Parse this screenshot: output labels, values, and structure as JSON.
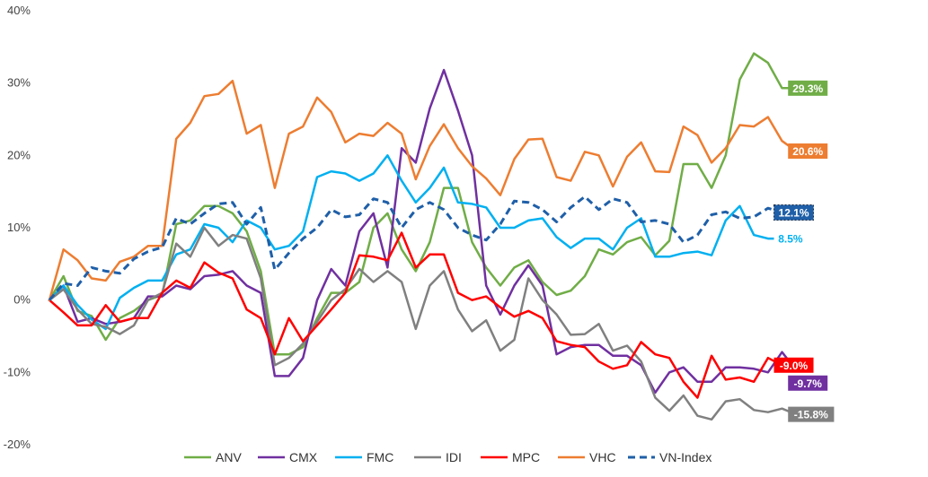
{
  "chart_data": {
    "type": "line",
    "ylim": [
      -20,
      40
    ],
    "y_ticks": [
      -20,
      -10,
      0,
      10,
      20,
      30,
      40
    ],
    "y_tick_labels": [
      "-20%",
      "-10%",
      "0%",
      "10%",
      "20%",
      "30%",
      "40%"
    ],
    "grid": false,
    "legend_position": "bottom",
    "x_count": 61,
    "series": [
      {
        "name": "ANV",
        "color": "#70ad47",
        "dash": false,
        "end_label": "29.3%",
        "label_text_color": "#ffffff",
        "values": [
          0,
          3.3,
          -1.5,
          -2.2,
          -5.5,
          -2.5,
          -1.5,
          0,
          0.7,
          10.5,
          11,
          13,
          13,
          12,
          9.5,
          4,
          -7.5,
          -7.5,
          -6.5,
          -2.5,
          1,
          1,
          2.5,
          10,
          12,
          7,
          4,
          8,
          15.5,
          15.5,
          8,
          4.5,
          2,
          4.5,
          5.5,
          2.5,
          0.7,
          1.3,
          3.3,
          7,
          6.3,
          8,
          8.7,
          6.2,
          8.2,
          18.8,
          18.8,
          15.5,
          20,
          30.5,
          34.1,
          32.8,
          29.3,
          29.3
        ]
      },
      {
        "name": "CMX",
        "color": "#7030a0",
        "dash": false,
        "end_label": "-9.7%",
        "label_text_color": "#ffffff",
        "values": [
          0,
          2,
          -3,
          -2.5,
          -3.3,
          -3,
          -2.5,
          0.5,
          0.5,
          2,
          1.5,
          3.3,
          3.5,
          4,
          2,
          1,
          -10.5,
          -10.5,
          -8,
          0,
          4.3,
          2,
          9.5,
          12,
          4.5,
          21,
          19,
          26.5,
          31.8,
          26.2,
          20,
          2,
          -2,
          2,
          4.8,
          2,
          -7.5,
          -6.5,
          -6.2,
          -6.2,
          -7.7,
          -7.7,
          -9,
          -12.8,
          -10,
          -9.3,
          -11.3,
          -11.3,
          -9.3,
          -9.3,
          -9.5,
          -10,
          -7.2,
          -9.7
        ]
      },
      {
        "name": "FMC",
        "color": "#00b0f0",
        "dash": false,
        "end_label": "8.5%",
        "label_text_color": "#00b0f0",
        "values": [
          0,
          2,
          -0.7,
          -2.7,
          -4,
          0.3,
          1.7,
          2.7,
          2.7,
          6.3,
          7,
          10.5,
          10,
          8,
          11,
          10,
          7,
          7.5,
          9.5,
          17,
          17.8,
          17.5,
          16.5,
          17.5,
          20,
          16.5,
          13.5,
          15.5,
          18.3,
          13.5,
          13.3,
          12.8,
          10,
          10,
          11,
          11.3,
          8.7,
          7.2,
          8.5,
          8.5,
          7,
          10,
          11.3,
          6,
          6,
          6.5,
          6.7,
          6.2,
          11,
          13,
          9,
          8.5,
          8.5
        ]
      },
      {
        "name": "IDI",
        "color": "#808080",
        "dash": false,
        "end_label": "-15.8%",
        "label_text_color": "#ffffff",
        "values": [
          0,
          1.5,
          -1.3,
          -3.3,
          -3.7,
          -4.7,
          -3.5,
          0,
          1,
          7.8,
          6,
          10,
          7.5,
          9,
          8.5,
          3,
          -9,
          -8,
          -6,
          -3,
          0,
          1.5,
          4.3,
          2.5,
          4,
          2.5,
          -4,
          2,
          4,
          -1.3,
          -4.3,
          -2.8,
          -7,
          -5.5,
          3,
          0,
          -2,
          -4.8,
          -4.7,
          -3.3,
          -7,
          -6.3,
          -8.5,
          -13.5,
          -15.3,
          -13.2,
          -16,
          -16.5,
          -14,
          -13.7,
          -15.2,
          -15.5,
          -15,
          -15.8
        ]
      },
      {
        "name": "MPC",
        "color": "#ff0000",
        "dash": false,
        "end_label": "-9.0%",
        "label_text_color": "#ffffff",
        "values": [
          0,
          -1.7,
          -3.5,
          -3.5,
          -0.7,
          -3,
          -2.5,
          -2.5,
          1,
          2.7,
          1.7,
          5.2,
          3.8,
          3,
          -1.3,
          -2.5,
          -7.5,
          -2.5,
          -5.7,
          -3.5,
          -1.3,
          1,
          6.2,
          6,
          5.5,
          9.3,
          4.5,
          6.3,
          6.3,
          1,
          0,
          0.5,
          -1,
          -2.3,
          -1.5,
          -2.5,
          -5.7,
          -6.2,
          -6.5,
          -8.5,
          -9.5,
          -9,
          -5.8,
          -7.5,
          -8,
          -11.3,
          -13.5,
          -7.7,
          -11,
          -10.7,
          -11.3,
          -8,
          -9
        ]
      },
      {
        "name": "VHC",
        "color": "#ed7d31",
        "dash": false,
        "end_label": "20.6%",
        "label_text_color": "#ffffff",
        "values": [
          0,
          7,
          5.5,
          3,
          2.7,
          5.3,
          6,
          7.5,
          7.5,
          22.3,
          24.5,
          28.2,
          28.5,
          30.3,
          23,
          24.2,
          15.5,
          23,
          24,
          28,
          26,
          21.8,
          23,
          22.7,
          24.5,
          23,
          16.7,
          21.3,
          24.3,
          21,
          18.5,
          16.8,
          14.5,
          19.5,
          22.2,
          22.3,
          17,
          16.5,
          20.5,
          20,
          15.7,
          19.8,
          21.8,
          17.8,
          17.7,
          24,
          22.8,
          19,
          21,
          24.2,
          24,
          25.3,
          22,
          20.6
        ]
      },
      {
        "name": "VN-Index",
        "color": "#1f5fa8",
        "dash": true,
        "end_label": "12.1%",
        "label_text_color": "#ffffff",
        "values": [
          0,
          2.3,
          2,
          4.5,
          4,
          3.7,
          5.7,
          6.7,
          7.3,
          11.3,
          10.5,
          12,
          13.3,
          13.5,
          10.5,
          12.8,
          4.2,
          6.5,
          8.5,
          10,
          12.5,
          11.5,
          11.8,
          14,
          13.5,
          10,
          12.5,
          13.5,
          12.5,
          10,
          9,
          8.3,
          10.5,
          13.7,
          13.5,
          12.5,
          10.8,
          12.8,
          14.3,
          12.5,
          14,
          13.5,
          10.8,
          11,
          10.5,
          8,
          9,
          11.8,
          12.2,
          11.3,
          11.5,
          12.7,
          12.1
        ]
      }
    ]
  }
}
